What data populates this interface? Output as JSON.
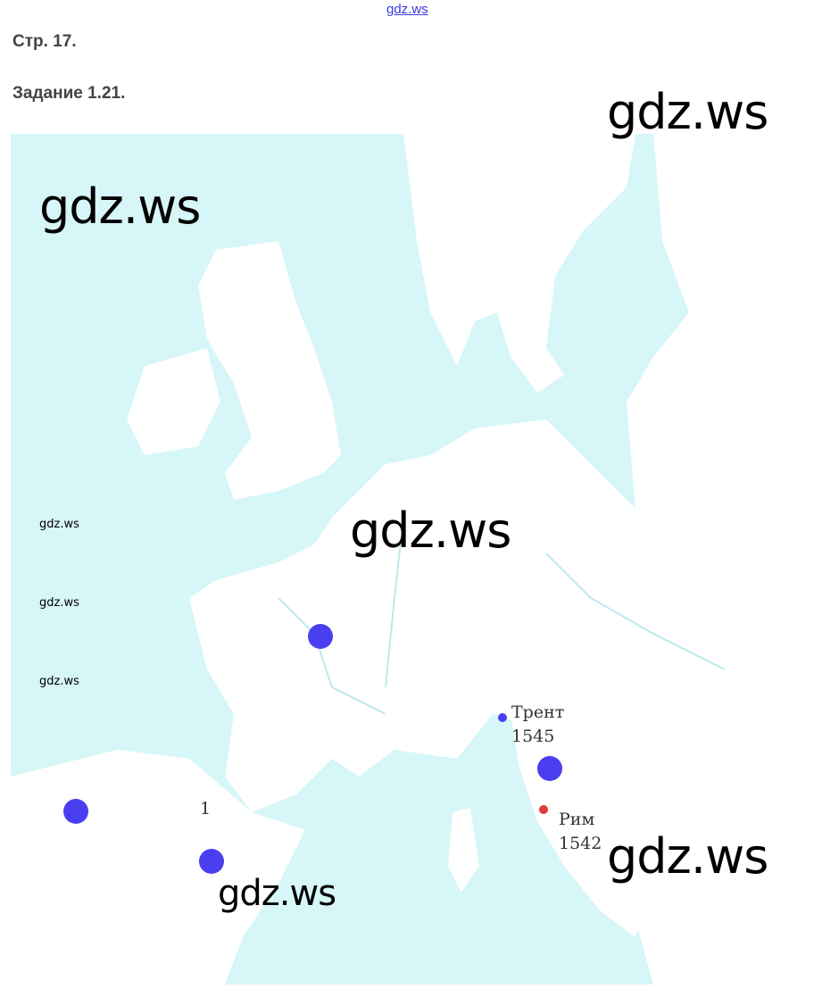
{
  "header": {
    "site_link": "gdz.ws",
    "page": "Стр. 17.",
    "task": "Задание 1.21."
  },
  "map": {
    "sea_color": "#d6f6f8",
    "land_color": "#ffffff",
    "marker_blue": "#4a3ff0",
    "marker_red": "#e23a3a",
    "labels": {
      "trent_name": "Трент",
      "trent_year": "1545",
      "rome_name": "Рим",
      "rome_year": "1542",
      "number_one": "1"
    }
  },
  "watermarks": [
    "gdz.ws",
    "gdz.ws",
    "gdz.ws",
    "gdz.ws",
    "gdz.ws",
    "gdz.ws",
    "gdz.ws",
    "gdz.ws"
  ]
}
